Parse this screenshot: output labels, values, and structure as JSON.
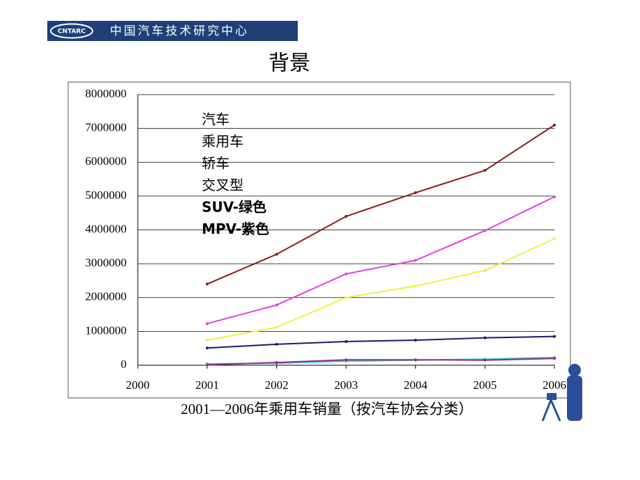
{
  "header": {
    "logo_text": "CNTARC",
    "organization": "中国汽车技术研究中心"
  },
  "chart_data": {
    "type": "line",
    "title": "背景",
    "x_label": "2001—2006年乘用车销量（按汽车协会分类）",
    "x": [
      2001,
      2002,
      2003,
      2004,
      2005,
      2006
    ],
    "xlim": [
      2000,
      2006
    ],
    "xticks": [
      2000,
      2001,
      2002,
      2003,
      2004,
      2005,
      2006
    ],
    "ylim": [
      0,
      8000000
    ],
    "yticks": [
      0,
      1000000,
      2000000,
      3000000,
      4000000,
      5000000,
      6000000,
      7000000,
      8000000
    ],
    "grid": true,
    "series": [
      {
        "name": "汽车",
        "color": "#8b1a1a",
        "values": [
          2400000,
          3280000,
          4400000,
          5100000,
          5760000,
          7100000
        ]
      },
      {
        "name": "乘用车",
        "color": "#e040e0",
        "values": [
          1230000,
          1780000,
          2700000,
          3100000,
          3980000,
          4980000
        ]
      },
      {
        "name": "轿车",
        "color": "#f0f040",
        "values": [
          740000,
          1120000,
          2000000,
          2340000,
          2800000,
          3740000
        ]
      },
      {
        "name": "交叉型",
        "color": "#1a1a70",
        "values": [
          510000,
          620000,
          700000,
          740000,
          810000,
          850000
        ]
      },
      {
        "name": "SUV-绿色",
        "color": "#40c0c8",
        "values": [
          40000,
          60000,
          120000,
          150000,
          180000,
          230000
        ]
      },
      {
        "name": "MPV-紫色",
        "color": "#8b2f8b",
        "values": [
          10000,
          80000,
          160000,
          160000,
          150000,
          200000
        ]
      }
    ]
  }
}
